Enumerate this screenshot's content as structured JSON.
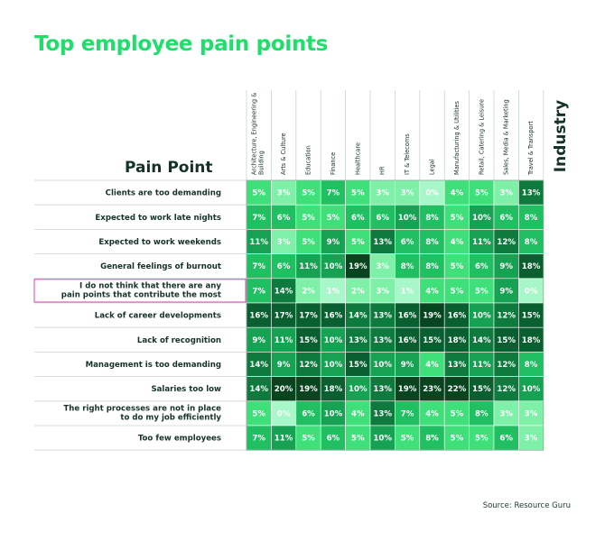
{
  "title": "Top employee pain points",
  "source": "Source: Resource Guru",
  "chart_data": {
    "type": "heatmap",
    "row_axis_label": "Pain Point",
    "col_axis_label": "Industry",
    "columns": [
      "Architecture, Engineering & Building",
      "Arts & Culture",
      "Education",
      "Finance",
      "Healthcare",
      "HR",
      "IT & Telecoms",
      "Legal",
      "Manufacturing & Utilities",
      "Retail, Catering & Leisure",
      "Sales, Media & Marketing",
      "Travel & Transport"
    ],
    "rows": [
      {
        "label": "Clients are too demanding",
        "values": [
          5,
          3,
          5,
          7,
          5,
          3,
          3,
          0,
          4,
          5,
          3,
          13
        ]
      },
      {
        "label": "Expected to work late nights",
        "values": [
          7,
          6,
          5,
          5,
          6,
          6,
          10,
          8,
          5,
          10,
          6,
          8
        ]
      },
      {
        "label": "Expected to work weekends",
        "values": [
          11,
          3,
          5,
          9,
          5,
          13,
          6,
          8,
          4,
          11,
          12,
          8
        ]
      },
      {
        "label": "General feelings of burnout",
        "values": [
          7,
          6,
          11,
          10,
          19,
          3,
          8,
          8,
          5,
          6,
          9,
          18
        ]
      },
      {
        "label": "I do not think that there are any pain points that contribute the most",
        "label_lines": [
          "I do not think that there are any",
          "pain points that contribute the most"
        ],
        "highlighted": true,
        "values": [
          7,
          14,
          2,
          1,
          2,
          3,
          1,
          4,
          5,
          5,
          9,
          0
        ]
      },
      {
        "label": "Lack of career developments",
        "values": [
          16,
          17,
          17,
          16,
          14,
          13,
          16,
          19,
          16,
          10,
          12,
          15
        ]
      },
      {
        "label": "Lack of recognition",
        "values": [
          9,
          11,
          15,
          10,
          13,
          13,
          16,
          15,
          18,
          14,
          15,
          18
        ]
      },
      {
        "label": "Management is too demanding",
        "values": [
          14,
          9,
          12,
          10,
          15,
          10,
          9,
          4,
          13,
          11,
          12,
          8
        ]
      },
      {
        "label": "Salaries too low",
        "values": [
          14,
          20,
          19,
          18,
          10,
          13,
          19,
          23,
          22,
          15,
          12,
          10
        ]
      },
      {
        "label": "The right processes are not in place to do my job efficiently",
        "label_lines": [
          "The right processes are not in place",
          "to do my job efficiently"
        ],
        "values": [
          5,
          0,
          6,
          10,
          4,
          13,
          7,
          4,
          5,
          8,
          3,
          3
        ]
      },
      {
        "label": "Too few employees",
        "values": [
          7,
          11,
          5,
          6,
          5,
          10,
          5,
          8,
          5,
          5,
          6,
          3
        ]
      }
    ],
    "value_suffix": "%",
    "colors": {
      "scale": [
        "#a8f7c8",
        "#7ef0a8",
        "#3fe07a",
        "#1fbf62",
        "#17a152",
        "#0e7a3e",
        "#0a5f30",
        "#07451f"
      ],
      "title": "#1fde6b",
      "highlight_border": "#e040b0",
      "text_dark": "#163326"
    }
  }
}
